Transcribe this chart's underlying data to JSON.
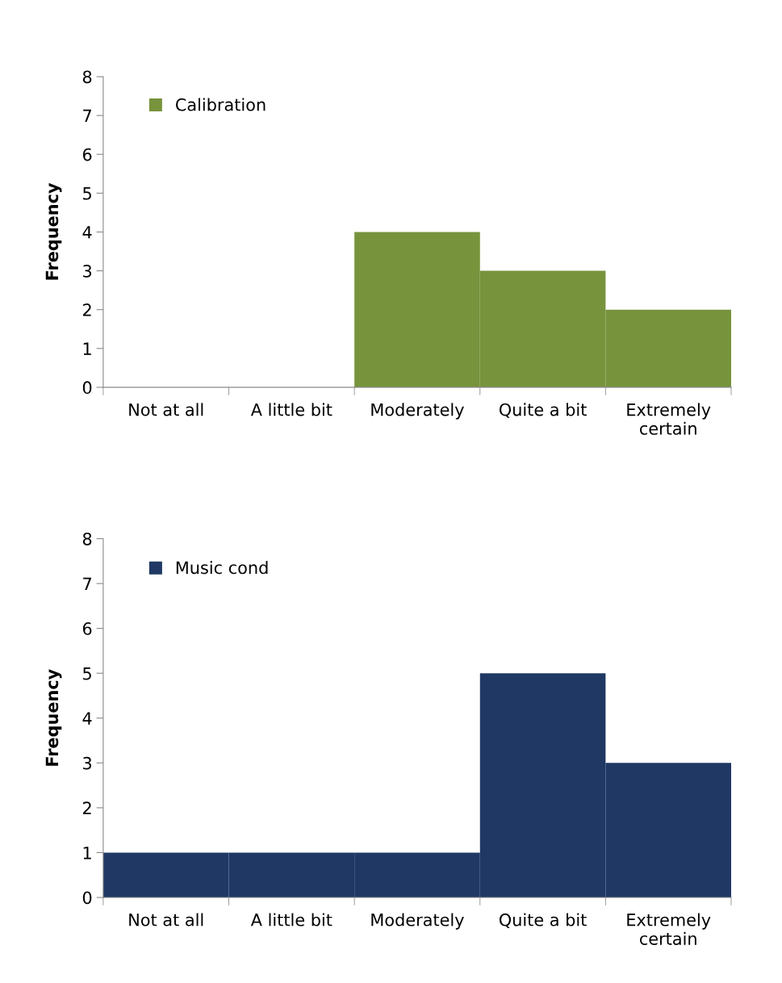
{
  "chart_data": [
    {
      "type": "bar",
      "ylabel": "Frequency",
      "categories": [
        "Not at all",
        "A little bit",
        "Moderately",
        "Quite a bit",
        "Extremely\ncertain"
      ],
      "series": [
        {
          "name": "Calibration",
          "color": "#77933c",
          "values": [
            0,
            0,
            4,
            3,
            2
          ]
        }
      ],
      "ylim": [
        0,
        8
      ],
      "yticks": [
        0,
        1,
        2,
        3,
        4,
        5,
        6,
        7,
        8
      ],
      "legend": "top left",
      "grid": false
    },
    {
      "type": "bar",
      "ylabel": "Frequency",
      "categories": [
        "Not at all",
        "A little bit",
        "Moderately",
        "Quite a bit",
        "Extremely\ncertain"
      ],
      "series": [
        {
          "name": "Music cond",
          "color": "#1f3864",
          "values": [
            1,
            1,
            1,
            5,
            3
          ]
        }
      ],
      "ylim": [
        0,
        8
      ],
      "yticks": [
        0,
        1,
        2,
        3,
        4,
        5,
        6,
        7,
        8
      ],
      "legend": "top left",
      "grid": false
    }
  ]
}
